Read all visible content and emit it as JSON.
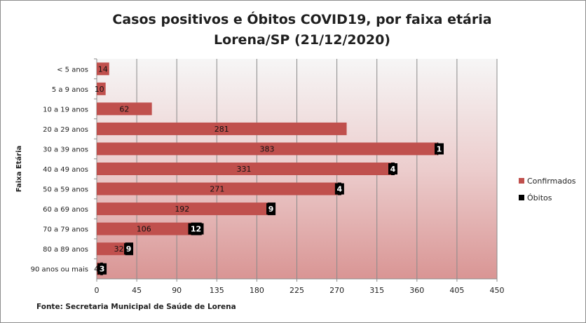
{
  "chart_data": {
    "type": "bar",
    "orientation": "horizontal",
    "stacked": true,
    "title": [
      "Casos positivos e Óbitos COVID19, por faixa etária",
      "Lorena/SP (21/12/2020)"
    ],
    "ylabel": "Faixa Etária",
    "xlabel": "",
    "xlim": [
      0,
      450
    ],
    "xticks": [
      0,
      45,
      90,
      135,
      180,
      225,
      270,
      315,
      360,
      405,
      450
    ],
    "grid": true,
    "legend_position": "right",
    "categories": [
      "< 5 anos",
      "5 a 9 anos",
      "10 a 19 anos",
      "20 a 29 anos",
      "30 a 39 anos",
      "40 a 49 anos",
      "50 a 59 anos",
      "60 a 69 anos",
      "70 a 79 anos",
      "80 a 89 anos",
      "90 anos ou mais"
    ],
    "series": [
      {
        "name": "Confirmados",
        "color": "#c0504d",
        "values": [
          14,
          10,
          62,
          281,
          383,
          331,
          271,
          192,
          106,
          32,
          4
        ]
      },
      {
        "name": "Óbitos",
        "color": "#000000",
        "values": [
          0,
          0,
          0,
          0,
          1,
          4,
          4,
          9,
          12,
          9,
          3
        ]
      }
    ],
    "source": "Fonte: Secretaria Municipal  de Saúde de Lorena"
  }
}
